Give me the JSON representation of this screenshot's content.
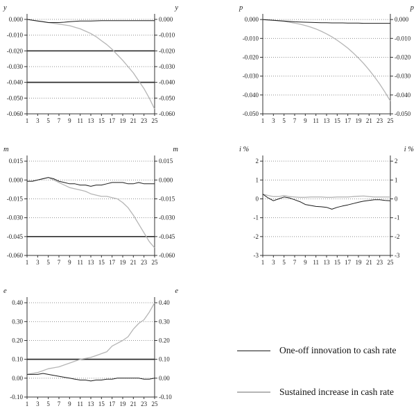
{
  "legend": {
    "items": [
      {
        "label": "One-off innovation to cash rate",
        "color": "#1a1a1a",
        "line_width": 1
      },
      {
        "label": "Sustained increase in cash rate",
        "color": "#b5b5b5",
        "line_width": 2
      }
    ]
  },
  "chart_data": [
    {
      "type": "line",
      "axis_title": "y",
      "x_range": [
        1,
        25
      ],
      "x_ticks": [
        1,
        3,
        5,
        7,
        9,
        11,
        13,
        15,
        17,
        19,
        21,
        23,
        25
      ],
      "y_tick_labels": [
        "0.000",
        "-0.010",
        "-0.020",
        "-0.030",
        "-0.040",
        "-0.050",
        "-0.060"
      ],
      "y_tick_values": [
        0,
        -0.01,
        -0.02,
        -0.03,
        -0.04,
        -0.05,
        -0.06
      ],
      "ylim": [
        -0.06,
        0.0035
      ],
      "dark_gridlines": [
        -0.02,
        -0.04
      ],
      "series": [
        {
          "name": "One-off innovation to cash rate",
          "color": "#1a1a1a",
          "width": 1,
          "values": [
            0,
            -0.0005,
            -0.001,
            -0.0015,
            -0.002,
            -0.002,
            -0.002,
            -0.0018,
            -0.0015,
            -0.0012,
            -0.001,
            -0.001,
            -0.001,
            -0.0009,
            -0.0008,
            -0.0008,
            -0.0008,
            -0.0008,
            -0.0008,
            -0.0008,
            -0.0008,
            -0.0008,
            -0.0008,
            -0.0008,
            -0.0008
          ]
        },
        {
          "name": "Sustained increase in cash rate",
          "color": "#b5b5b5",
          "width": 1.3,
          "values": [
            0,
            -0.0005,
            -0.001,
            -0.0015,
            -0.002,
            -0.0025,
            -0.003,
            -0.0035,
            -0.004,
            -0.005,
            -0.006,
            -0.0075,
            -0.009,
            -0.011,
            -0.0135,
            -0.016,
            -0.019,
            -0.0225,
            -0.026,
            -0.03,
            -0.034,
            -0.039,
            -0.044,
            -0.05,
            -0.057
          ]
        }
      ]
    },
    {
      "type": "line",
      "axis_title": "p",
      "x_range": [
        1,
        25
      ],
      "x_ticks": [
        1,
        3,
        5,
        7,
        9,
        11,
        13,
        15,
        17,
        19,
        21,
        23,
        25
      ],
      "y_tick_labels": [
        "0.000",
        "-0.010",
        "-0.020",
        "-0.030",
        "-0.040",
        "-0.050"
      ],
      "y_tick_values": [
        0,
        -0.01,
        -0.02,
        -0.03,
        -0.04,
        -0.05
      ],
      "ylim": [
        -0.05,
        0.003
      ],
      "dark_gridlines": [],
      "series": [
        {
          "name": "One-off innovation to cash rate",
          "color": "#1a1a1a",
          "width": 1,
          "values": [
            0,
            -0.0002,
            -0.0004,
            -0.0006,
            -0.0008,
            -0.001,
            -0.0012,
            -0.0013,
            -0.0014,
            -0.0015,
            -0.0016,
            -0.0017,
            -0.0017,
            -0.0018,
            -0.0018,
            -0.0018,
            -0.0019,
            -0.0019,
            -0.0019,
            -0.002,
            -0.002,
            -0.002,
            -0.002,
            -0.002,
            -0.002
          ]
        },
        {
          "name": "Sustained increase in cash rate",
          "color": "#b5b5b5",
          "width": 1.3,
          "values": [
            0,
            -0.0002,
            -0.0004,
            -0.0007,
            -0.001,
            -0.0014,
            -0.0019,
            -0.0025,
            -0.0032,
            -0.004,
            -0.005,
            -0.0062,
            -0.0076,
            -0.0092,
            -0.011,
            -0.013,
            -0.0152,
            -0.0177,
            -0.0204,
            -0.0234,
            -0.0267,
            -0.0303,
            -0.0342,
            -0.0385,
            -0.0432
          ]
        }
      ]
    },
    {
      "type": "line",
      "axis_title": "m",
      "x_range": [
        1,
        25
      ],
      "x_ticks": [
        1,
        3,
        5,
        7,
        9,
        11,
        13,
        15,
        17,
        19,
        21,
        23,
        25
      ],
      "y_tick_labels": [
        "0.015",
        "0.000",
        "-0.015",
        "-0.030",
        "-0.045",
        "-0.060"
      ],
      "y_tick_values": [
        0.015,
        0,
        -0.015,
        -0.03,
        -0.045,
        -0.06
      ],
      "ylim": [
        -0.06,
        0.0195
      ],
      "dark_gridlines": [
        -0.045
      ],
      "series": [
        {
          "name": "One-off innovation to cash rate",
          "color": "#1a1a1a",
          "width": 1,
          "values": [
            -0.001,
            -0.001,
            0,
            0.001,
            0.002,
            0.001,
            -0.001,
            -0.002,
            -0.003,
            -0.003,
            -0.004,
            -0.004,
            -0.005,
            -0.004,
            -0.004,
            -0.003,
            -0.002,
            -0.002,
            -0.002,
            -0.003,
            -0.003,
            -0.002,
            -0.003,
            -0.003,
            -0.003
          ]
        },
        {
          "name": "Sustained increase in cash rate",
          "color": "#b5b5b5",
          "width": 1.3,
          "values": [
            -0.001,
            -0.001,
            0,
            0.001,
            0.002,
            0,
            -0.002,
            -0.004,
            -0.006,
            -0.007,
            -0.008,
            -0.009,
            -0.011,
            -0.012,
            -0.013,
            -0.013,
            -0.014,
            -0.015,
            -0.018,
            -0.022,
            -0.028,
            -0.035,
            -0.042,
            -0.049,
            -0.054
          ]
        }
      ]
    },
    {
      "type": "line",
      "axis_title": "i %",
      "x_range": [
        1,
        25
      ],
      "x_ticks": [
        1,
        3,
        5,
        7,
        9,
        11,
        13,
        15,
        17,
        19,
        21,
        23,
        25
      ],
      "y_tick_labels": [
        "2",
        "1",
        "0",
        "-1",
        "-2",
        "-3"
      ],
      "y_tick_values": [
        2,
        1,
        0,
        -1,
        -2,
        -3
      ],
      "ylim": [
        -3,
        2.3
      ],
      "dark_gridlines": [],
      "series": [
        {
          "name": "One-off innovation to cash rate",
          "color": "#1a1a1a",
          "width": 1,
          "values": [
            0.25,
            0.05,
            -0.1,
            0,
            0.1,
            0.05,
            -0.05,
            -0.15,
            -0.3,
            -0.35,
            -0.4,
            -0.42,
            -0.45,
            -0.55,
            -0.45,
            -0.38,
            -0.32,
            -0.25,
            -0.18,
            -0.12,
            -0.08,
            -0.05,
            -0.05,
            -0.08,
            -0.1
          ]
        },
        {
          "name": "Sustained increase in cash rate",
          "color": "#b5b5b5",
          "width": 1.3,
          "values": [
            0.25,
            0.18,
            0.12,
            0.12,
            0.18,
            0.12,
            0.1,
            0.08,
            0.08,
            0.1,
            0.1,
            0.1,
            0.08,
            0.08,
            0.1,
            0.1,
            0.1,
            0.12,
            0.14,
            0.15,
            0.12,
            0.1,
            0.1,
            0.1,
            0.1
          ]
        }
      ]
    },
    {
      "type": "line",
      "axis_title": "e",
      "x_range": [
        1,
        25
      ],
      "x_ticks": [
        1,
        3,
        5,
        7,
        9,
        11,
        13,
        15,
        17,
        19,
        21,
        23,
        25
      ],
      "y_tick_labels": [
        "0.40",
        "0.30",
        "0.20",
        "0.10",
        "0.00",
        "-0.10"
      ],
      "y_tick_values": [
        0.4,
        0.3,
        0.2,
        0.1,
        0,
        -0.1
      ],
      "ylim": [
        -0.1,
        0.43
      ],
      "dark_gridlines": [
        0.1
      ],
      "series": [
        {
          "name": "One-off innovation to cash rate",
          "color": "#1a1a1a",
          "width": 1,
          "values": [
            0.02,
            0.02,
            0.02,
            0.025,
            0.02,
            0.015,
            0.01,
            0.005,
            0,
            -0.005,
            -0.01,
            -0.01,
            -0.015,
            -0.01,
            -0.01,
            -0.005,
            -0.005,
            0,
            0,
            0,
            0,
            0,
            -0.005,
            -0.005,
            0
          ]
        },
        {
          "name": "Sustained increase in cash rate",
          "color": "#b5b5b5",
          "width": 1.3,
          "values": [
            0.02,
            0.025,
            0.03,
            0.04,
            0.05,
            0.055,
            0.06,
            0.07,
            0.08,
            0.09,
            0.1,
            0.105,
            0.11,
            0.12,
            0.13,
            0.14,
            0.17,
            0.185,
            0.2,
            0.22,
            0.26,
            0.29,
            0.31,
            0.35,
            0.4
          ]
        }
      ]
    }
  ]
}
